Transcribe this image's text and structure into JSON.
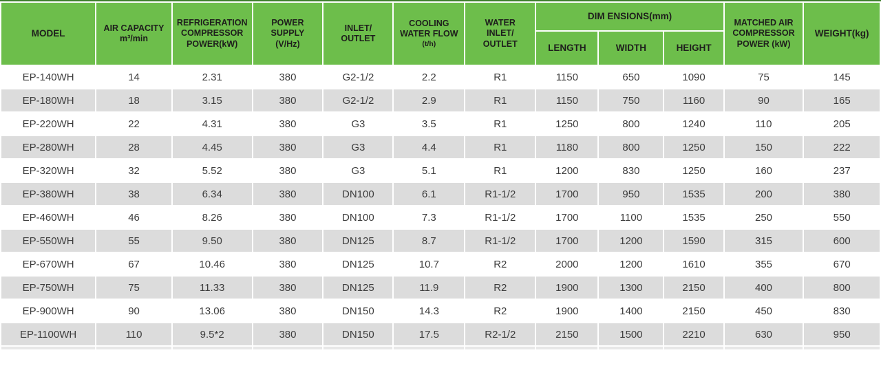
{
  "colors": {
    "header_green": "#6dbe4b",
    "top_rule_dark_green": "#3e7e2c",
    "row_alt_gray": "#dcdcdc",
    "header_text": "#1e1e1c",
    "body_text": "#3d3d3d"
  },
  "table": {
    "header": {
      "model": "MODEL",
      "air_capacity": "AIR CAPACITY\nm³/min",
      "refrigeration": "REFRIGERATION\nCOMPRESSOR\nPOWER(kW)",
      "power_supply": "POWER\nSUPPLY\n(V/Hz)",
      "inlet_outlet": "INLET/\nOUTLET",
      "cooling_water_flow": "COOLING\nWATER FLOW",
      "cooling_water_flow_unit": "(t/h)",
      "water_inlet_outlet": "WATER\nINLET/\nOUTLET",
      "dimensions": "DIM ENSIONS(mm)",
      "length": "LENGTH",
      "width": "WIDTH",
      "height": "HEIGHT",
      "matched_power": "MATCHED AIR\nCOMPRESSOR\nPOWER (kW)",
      "weight": "WEIGHT(kg)"
    }
  },
  "chart_data": {
    "type": "table",
    "columns": [
      "MODEL",
      "AIR CAPACITY m³/min",
      "REFRIGERATION COMPRESSOR POWER(kW)",
      "POWER SUPPLY (V/Hz)",
      "INLET/OUTLET",
      "COOLING WATER FLOW (t/h)",
      "WATER INLET/OUTLET",
      "DIM ENSIONS(mm) LENGTH",
      "DIM ENSIONS(mm) WIDTH",
      "DIM ENSIONS(mm) HEIGHT",
      "MATCHED AIR COMPRESSOR POWER (kW)",
      "WEIGHT(kg)"
    ],
    "column_keys": [
      "model",
      "air-capacity",
      "refrigeration-power",
      "power-supply",
      "inlet-outlet",
      "cooling-water-flow",
      "water-inlet-outlet",
      "length",
      "width",
      "height",
      "matched-power",
      "weight"
    ],
    "rows": [
      [
        "EP-140WH",
        "14",
        "2.31",
        "380",
        "G2-1/2",
        "2.2",
        "R1",
        "1150",
        "650",
        "1090",
        "75",
        "145"
      ],
      [
        "EP-180WH",
        "18",
        "3.15",
        "380",
        "G2-1/2",
        "2.9",
        "R1",
        "1150",
        "750",
        "1160",
        "90",
        "165"
      ],
      [
        "EP-220WH",
        "22",
        "4.31",
        "380",
        "G3",
        "3.5",
        "R1",
        "1250",
        "800",
        "1240",
        "110",
        "205"
      ],
      [
        "EP-280WH",
        "28",
        "4.45",
        "380",
        "G3",
        "4.4",
        "R1",
        "1180",
        "800",
        "1250",
        "150",
        "222"
      ],
      [
        "EP-320WH",
        "32",
        "5.52",
        "380",
        "G3",
        "5.1",
        "R1",
        "1200",
        "830",
        "1250",
        "160",
        "237"
      ],
      [
        "EP-380WH",
        "38",
        "6.34",
        "380",
        "DN100",
        "6.1",
        "R1-1/2",
        "1700",
        "950",
        "1535",
        "200",
        "380"
      ],
      [
        "EP-460WH",
        "46",
        "8.26",
        "380",
        "DN100",
        "7.3",
        "R1-1/2",
        "1700",
        "1100",
        "1535",
        "250",
        "550"
      ],
      [
        "EP-550WH",
        "55",
        "9.50",
        "380",
        "DN125",
        "8.7",
        "R1-1/2",
        "1700",
        "1200",
        "1590",
        "315",
        "600"
      ],
      [
        "EP-670WH",
        "67",
        "10.46",
        "380",
        "DN125",
        "10.7",
        "R2",
        "2000",
        "1200",
        "1610",
        "355",
        "670"
      ],
      [
        "EP-750WH",
        "75",
        "11.33",
        "380",
        "DN125",
        "11.9",
        "R2",
        "1900",
        "1300",
        "2150",
        "400",
        "800"
      ],
      [
        "EP-900WH",
        "90",
        "13.06",
        "380",
        "DN150",
        "14.3",
        "R2",
        "1900",
        "1400",
        "2150",
        "450",
        "830"
      ],
      [
        "EP-1100WH",
        "110",
        "9.5*2",
        "380",
        "DN150",
        "17.5",
        "R2-1/2",
        "2150",
        "1500",
        "2210",
        "630",
        "950"
      ]
    ]
  }
}
